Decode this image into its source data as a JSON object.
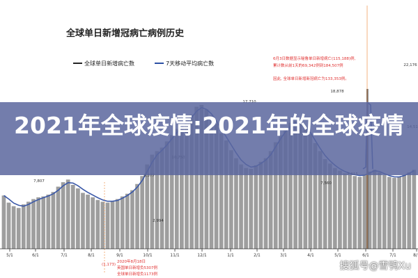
{
  "banner": {
    "title": "2021年全球疫情:2021年的全球疫情"
  },
  "watermark": "搜狐号@雪鸮Xu",
  "chart_data": {
    "type": "bar",
    "title": "全球单日新增冠病亡病例历史",
    "legend": [
      {
        "label": "全球单日新增病亡数",
        "color": "#222222"
      },
      {
        "label": "7天移动平均病亡数",
        "color": "#2b4fa3"
      }
    ],
    "legend_position": "top-left",
    "colors": {
      "bars": "#9e9e9e",
      "ma_line": "#3a58a8",
      "annotation": "#e03030",
      "guide": "#f0a060"
    },
    "x_tick_labels": [
      "5/1",
      "6/1",
      "7/1",
      "8/1",
      "9/1",
      "10/1",
      "11/1",
      "12/1",
      "1/1",
      "2/1",
      "3/1",
      "4/1",
      "5/1",
      "6/1",
      "7/1",
      "8/1"
    ],
    "data_labels": [
      "7,807",
      "2,994",
      "8,377",
      "10,750",
      "17,710",
      "18,878",
      "7,560",
      "8,615",
      "22,176",
      "14,51"
    ],
    "annotations": [
      "6月3日数据显示秘鲁单日新增病亡(115,188)例,",
      "累计数从前1天的69,342例到184,507例",
      "因此, 全球单日新增新冠病亡为133,353例。",
      "(1,173)",
      "2020年8月18日",
      "英国单日新增负5307例",
      "全球单日新增负1173例"
    ],
    "series": [
      {
        "name": "全球单日新增病亡数",
        "values": [
          6000,
          5200,
          4800,
          4600,
          5000,
          5300,
          5600,
          5800,
          5900,
          6100,
          6400,
          7000,
          7500,
          7800,
          7200,
          6800,
          6300,
          6100,
          5800,
          5500,
          5300,
          5200,
          5400,
          5600,
          5900,
          6200,
          6600,
          7300,
          8200,
          9500,
          10600,
          11000,
          11400,
          12100,
          12800,
          13500,
          13900,
          14600,
          15100,
          16000,
          16200,
          15700,
          15000,
          14100,
          13000,
          12200,
          11100,
          10200,
          9500,
          9100,
          9000,
          9400,
          9800,
          10200,
          11000,
          12000,
          12800,
          13600,
          14200,
          14400,
          14100,
          13700,
          12900,
          11900,
          11000,
          10100,
          9600,
          9100,
          8800,
          8500,
          8300,
          8200,
          8100,
          8300,
          8700,
          8900,
          8600,
          8300,
          8100,
          8000,
          8100,
          8300,
          8600,
          8900
        ]
      },
      {
        "name": "7天移动平均病亡数",
        "values": [
          6000,
          5600,
          5150,
          4900,
          4800,
          5000,
          5300,
          5550,
          5750,
          5950,
          6200,
          6600,
          7100,
          7450,
          7400,
          7100,
          6700,
          6350,
          6050,
          5750,
          5500,
          5350,
          5350,
          5450,
          5700,
          6000,
          6400,
          6950,
          7700,
          8700,
          9750,
          10600,
          11100,
          11700,
          12400,
          13100,
          13700,
          14200,
          14800,
          15500,
          15900,
          15700,
          15200,
          14400,
          13500,
          12600,
          11700,
          10800,
          10000,
          9500,
          9200,
          9300,
          9600,
          10000,
          10600,
          11500,
          12400,
          13200,
          13800,
          14200,
          14200,
          13800,
          13100,
          12200,
          11300,
          10500,
          9900,
          9400,
          9000,
          8700,
          8500,
          8350,
          8250,
          8300,
          8550,
          8800,
          8700,
          8450,
          8250,
          8100,
          8100,
          8250,
          8500,
          8800
        ]
      }
    ],
    "spike": {
      "value": 133353,
      "label": "6/1"
    }
  }
}
